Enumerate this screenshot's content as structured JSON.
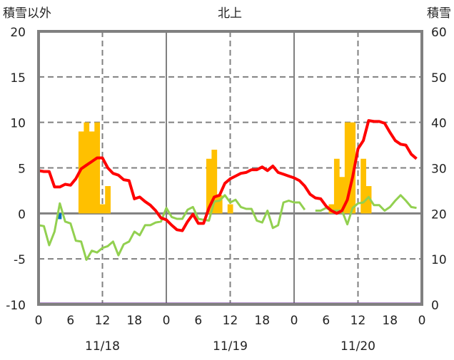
{
  "chart_data": {
    "type": "bar+line",
    "title": "北上",
    "left_axis_label": "積雪以外",
    "right_axis_label": "積雪",
    "left_ylim": [
      -10,
      20
    ],
    "left_ticks": [
      "20",
      "15",
      "10",
      "5",
      "0",
      "-5",
      "-10"
    ],
    "right_ylim": [
      0,
      60
    ],
    "right_ticks": [
      "60",
      "50",
      "40",
      "30",
      "20",
      "10",
      "0"
    ],
    "x_hours_range": [
      0,
      72
    ],
    "x_tick_labels": [
      "0",
      "6",
      "12",
      "18",
      "0",
      "6",
      "12",
      "18",
      "0",
      "6",
      "12",
      "18",
      "0"
    ],
    "dates": [
      "11/18",
      "11/19",
      "11/20"
    ],
    "colors": {
      "bars": "#FFC000",
      "red": "#FF0000",
      "green": "#92D050",
      "blue": "#0070C0",
      "purple": "#7030A0",
      "axis": "#808080"
    },
    "bars": {
      "hours": [
        8,
        9,
        10,
        11,
        12,
        13,
        32,
        33,
        34,
        36,
        55,
        56,
        57,
        58,
        59,
        61,
        62
      ],
      "values": [
        9,
        10,
        9,
        10,
        1,
        3,
        6,
        7,
        2,
        1,
        1,
        6,
        4,
        10,
        10,
        6,
        3
      ]
    },
    "red_series": [
      4.7,
      4.6,
      4.6,
      2.9,
      2.9,
      3.2,
      3.1,
      3.8,
      4.9,
      5.3,
      5.7,
      6.1,
      6.1,
      5.0,
      4.4,
      4.2,
      3.7,
      3.6,
      1.6,
      1.8,
      1.3,
      0.9,
      0.3,
      -0.5,
      -0.7,
      -1.3,
      -1.8,
      -1.9,
      -0.9,
      -0.1,
      -1.1,
      -1.1,
      0.6,
      1.8,
      2.0,
      3.3,
      3.8,
      4.1,
      4.4,
      4.5,
      4.8,
      4.8,
      5.1,
      4.7,
      5.2,
      4.5,
      4.3,
      4.1,
      3.9,
      3.6,
      3.0,
      2.1,
      1.7,
      1.6,
      0.8,
      0.3,
      0.0,
      0.3,
      1.5,
      4.0,
      7.1,
      8.0,
      10.2,
      10.1,
      10.1,
      9.9,
      8.9,
      8.0,
      7.6,
      7.5,
      6.5,
      6.0
    ],
    "green_series": [
      -1.3,
      -1.4,
      -3.5,
      -2.0,
      1.1,
      -0.9,
      -1.1,
      -3.0,
      -3.1,
      -5.1,
      -4.1,
      -4.3,
      -3.8,
      -3.6,
      -3.1,
      -4.6,
      -3.4,
      -3.1,
      -2.0,
      -2.4,
      -1.3,
      -1.3,
      -1.0,
      -0.9,
      0.6,
      -0.4,
      -0.6,
      -0.6,
      0.4,
      0.7,
      -0.6,
      -0.7,
      -0.8,
      1.3,
      1.4,
      2.0,
      1.2,
      1.5,
      0.7,
      0.5,
      0.5,
      -0.8,
      -1.0,
      0.3,
      -1.6,
      -1.3,
      1.2,
      1.4,
      1.2,
      1.2,
      0.4,
      null,
      0.3,
      0.3,
      0.6,
      0.3,
      0.3,
      0.3,
      -1.2,
      0.6,
      1.1,
      1.2,
      1.8,
      0.9,
      0.9,
      0.3,
      0.7,
      1.4,
      2.0,
      1.4,
      0.7,
      0.6
    ],
    "blue_marker": {
      "hour": 4,
      "value": -0.4
    },
    "purple_series_right_axis": 0
  }
}
